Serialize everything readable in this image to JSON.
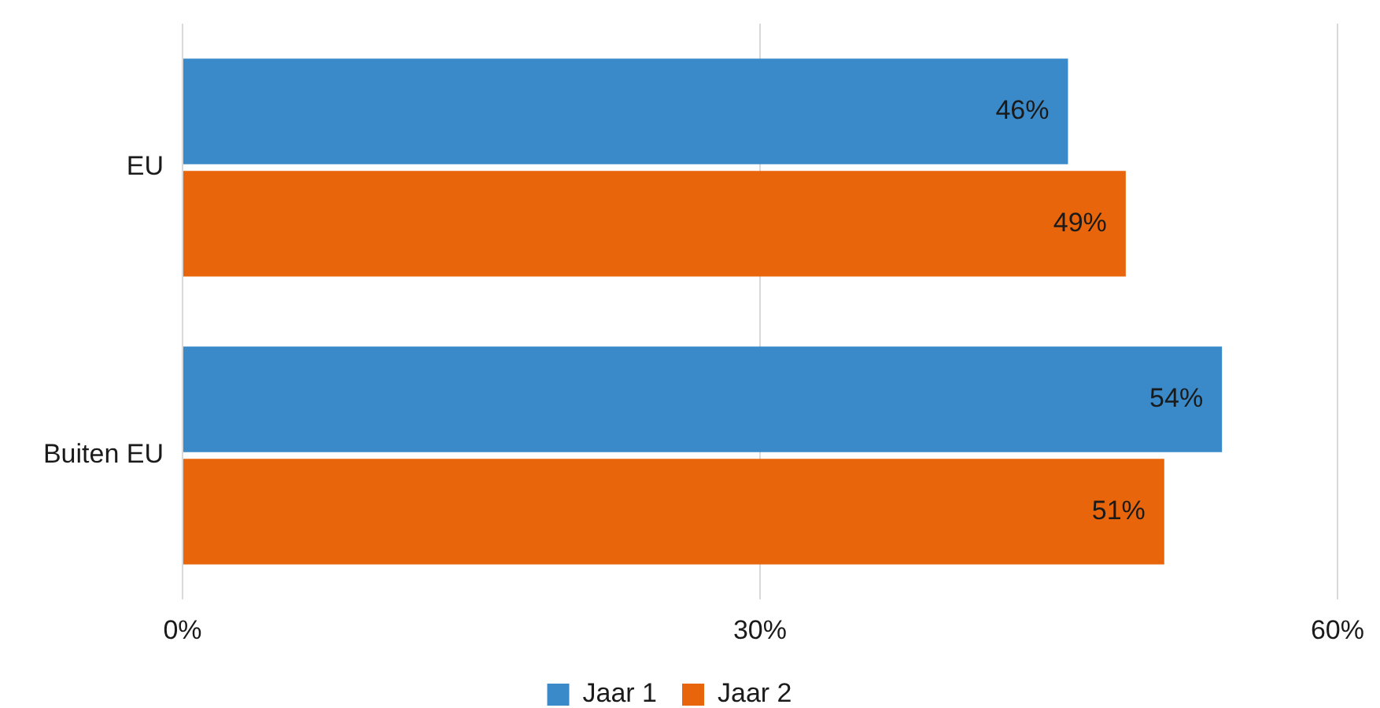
{
  "chart_data": {
    "type": "bar",
    "orientation": "horizontal",
    "categories": [
      "EU",
      "Buiten EU"
    ],
    "series": [
      {
        "name": "Jaar 1",
        "color": "#3a8ac9",
        "values": [
          46,
          54
        ],
        "value_labels": [
          "46%",
          "54%"
        ]
      },
      {
        "name": "Jaar 2",
        "color": "#e8650b",
        "values": [
          49,
          51
        ],
        "value_labels": [
          "49%",
          "51%"
        ]
      }
    ],
    "xlim": [
      0,
      60
    ],
    "xticks": [
      {
        "value": 0,
        "label": "0%"
      },
      {
        "value": 30,
        "label": "30%"
      },
      {
        "value": 60,
        "label": "60%"
      }
    ],
    "grid": "x",
    "legend": "bottom"
  }
}
